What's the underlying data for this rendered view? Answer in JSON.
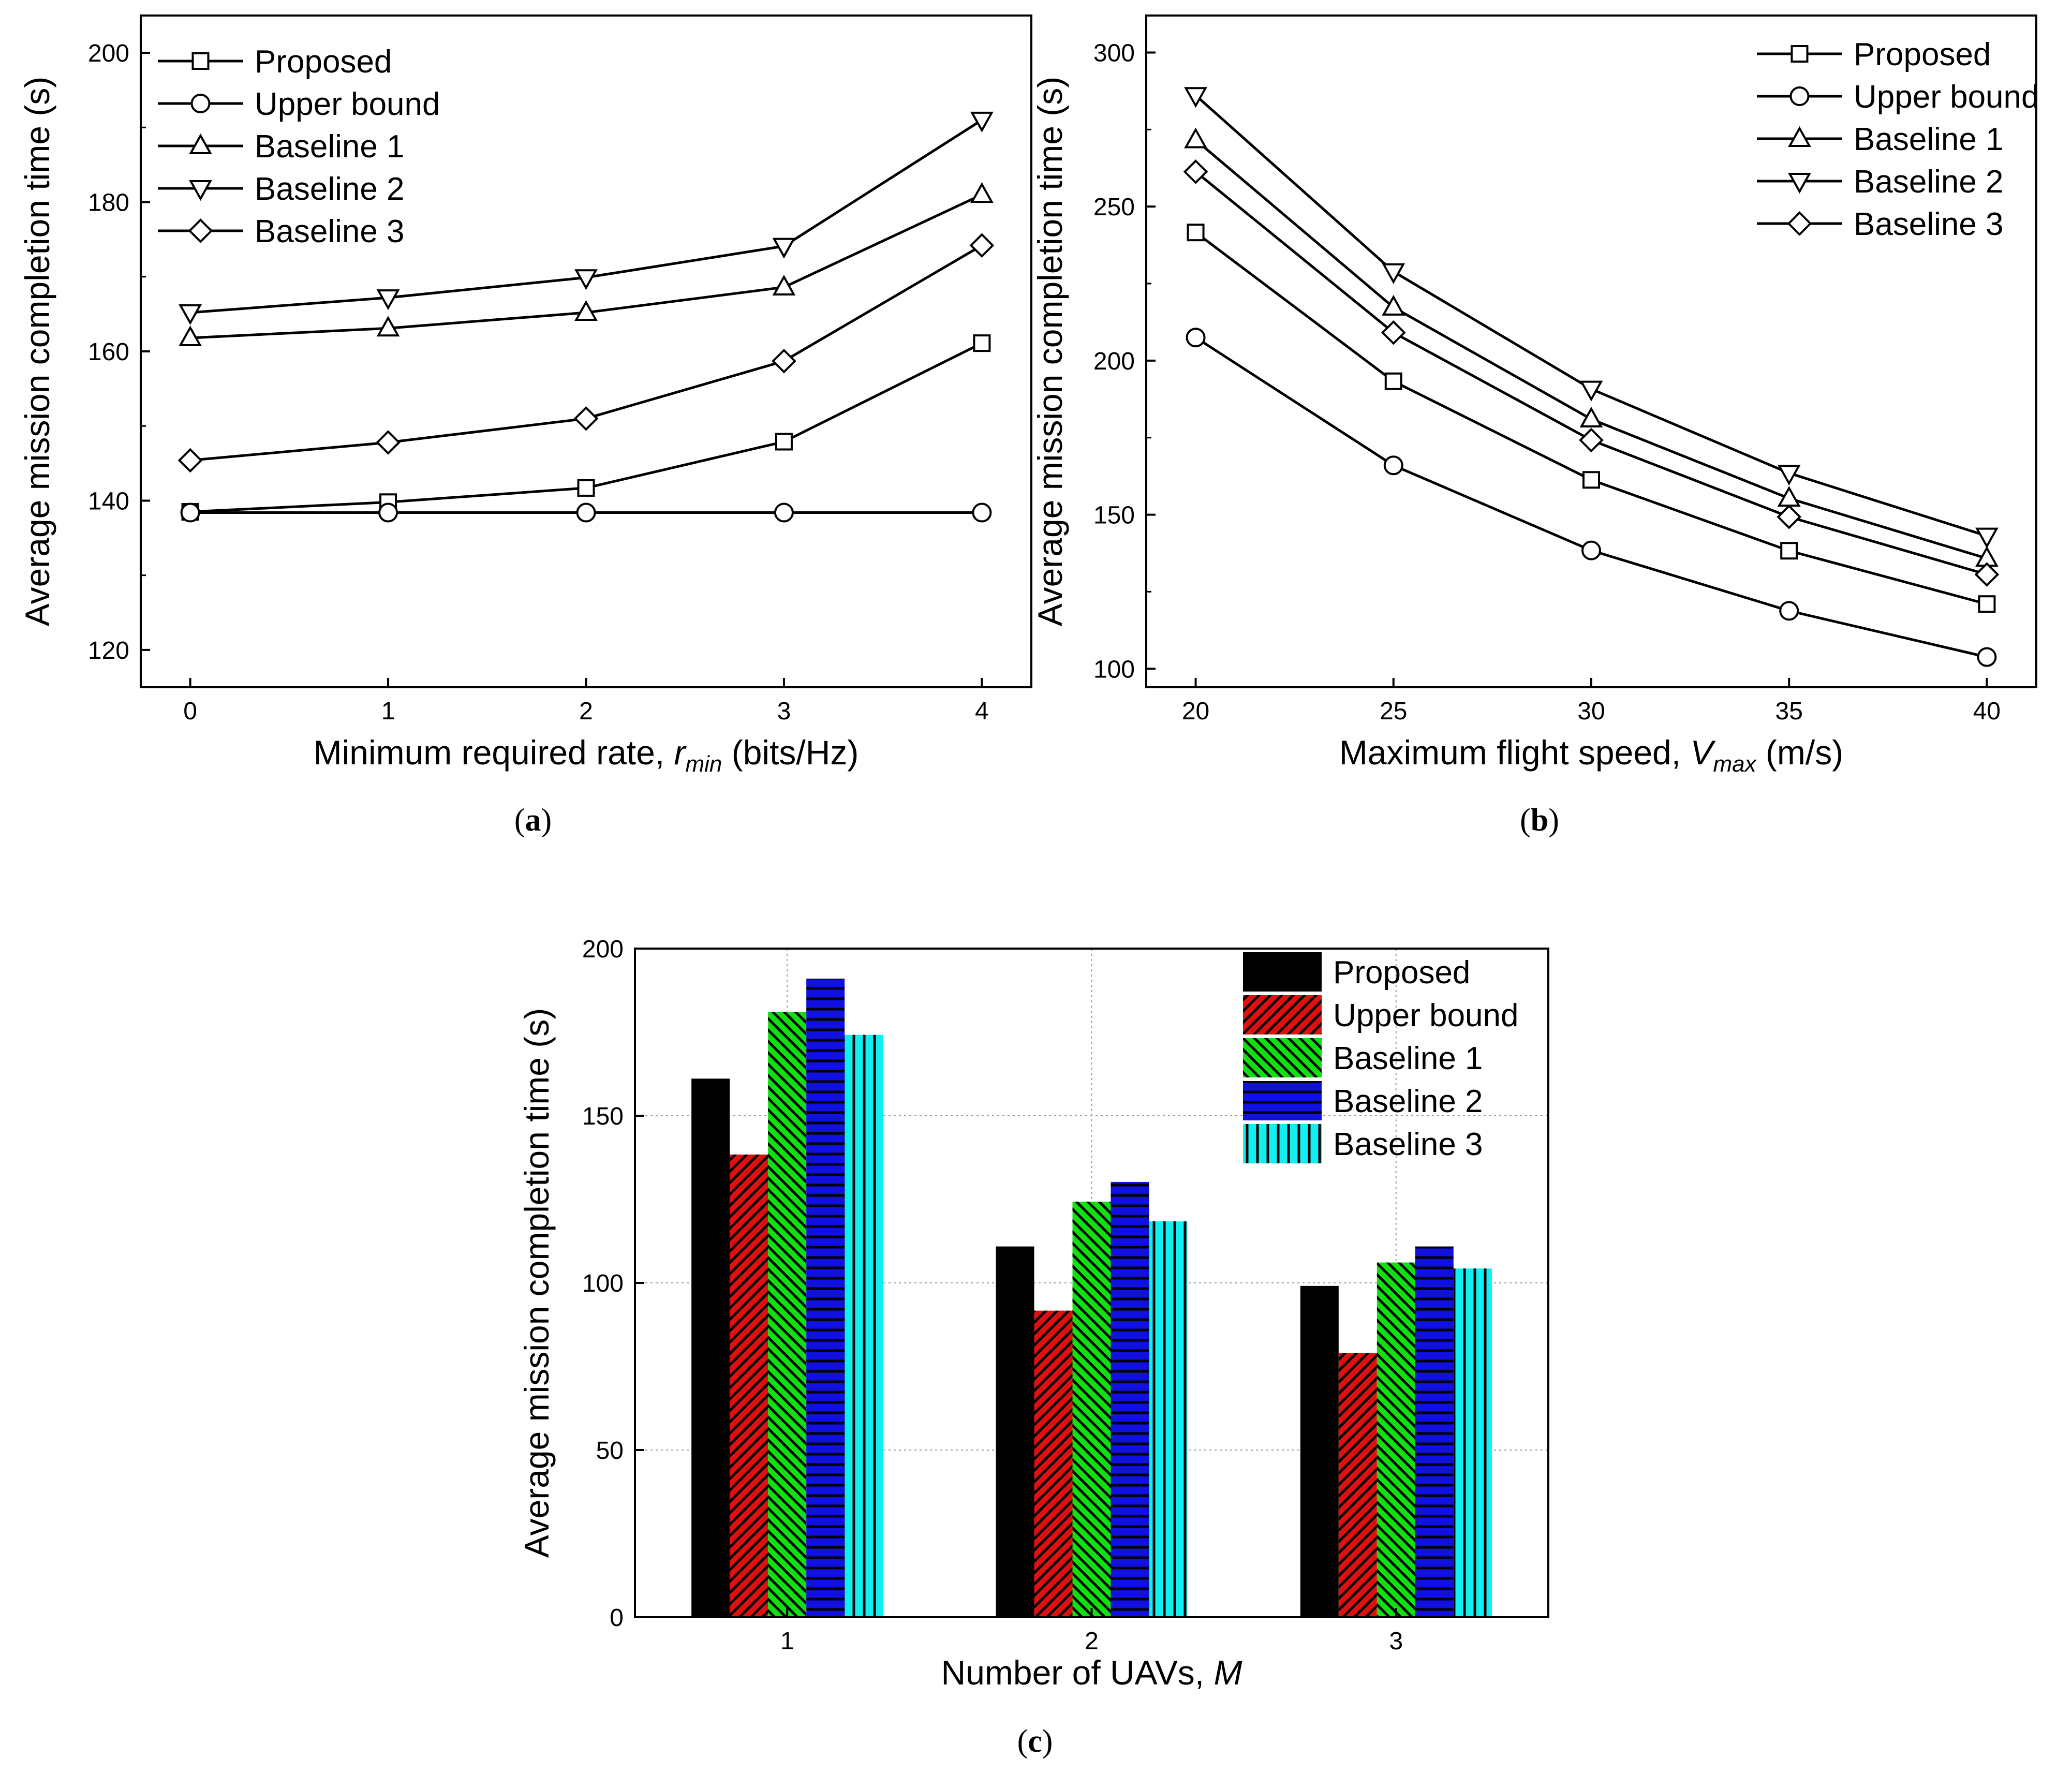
{
  "figure": {
    "panels": [
      {
        "label_open": "(",
        "label_letter": "a",
        "label_close": ")"
      },
      {
        "label_open": "(",
        "label_letter": "b",
        "label_close": ")"
      },
      {
        "label_open": "(",
        "label_letter": "c",
        "label_close": ")"
      }
    ]
  },
  "chart_data": [
    {
      "id": "a",
      "type": "line",
      "ylabel": "Average mission completion time (s)",
      "xlabel_parts": [
        "Minimum required rate, ",
        "r",
        "min",
        " (bits/Hz)"
      ],
      "x": [
        0,
        1,
        2,
        3,
        4
      ],
      "xlim": [
        -0.25,
        4.25
      ],
      "ylim": [
        115,
        205
      ],
      "xticks": [
        0,
        1,
        2,
        3,
        4
      ],
      "yticks": [
        120,
        140,
        160,
        180,
        200
      ],
      "grid": false,
      "legend_position": "top-left",
      "series": [
        {
          "name": "Proposed",
          "marker": "square",
          "values": [
            138.5,
            139.8,
            141.7,
            147.9,
            161.1
          ]
        },
        {
          "name": "Upper bound",
          "marker": "circle",
          "values": [
            138.4,
            138.4,
            138.4,
            138.4,
            138.4
          ]
        },
        {
          "name": "Baseline 1",
          "marker": "triangle-up",
          "values": [
            161.8,
            163.1,
            165.2,
            168.6,
            181.0
          ]
        },
        {
          "name": "Baseline 2",
          "marker": "triangle-down",
          "values": [
            165.2,
            167.2,
            169.9,
            174.1,
            191.0
          ]
        },
        {
          "name": "Baseline 3",
          "marker": "diamond",
          "values": [
            145.4,
            147.8,
            151.0,
            158.7,
            174.2
          ]
        }
      ]
    },
    {
      "id": "b",
      "type": "line",
      "ylabel": "Average mission completion time (s)",
      "xlabel_parts": [
        "Maximum flight speed, ",
        "V",
        "max",
        " (m/s)"
      ],
      "x": [
        20,
        25,
        30,
        35,
        40
      ],
      "xlim": [
        18.75,
        41.25
      ],
      "ylim": [
        94,
        312
      ],
      "xticks": [
        20,
        25,
        30,
        35,
        40
      ],
      "yticks": [
        100,
        150,
        200,
        250,
        300
      ],
      "grid": false,
      "legend_position": "top-right",
      "series": [
        {
          "name": "Proposed",
          "marker": "square",
          "values": [
            241.6,
            193.3,
            161.3,
            138.3,
            121.0
          ]
        },
        {
          "name": "Upper bound",
          "marker": "circle",
          "values": [
            207.5,
            166.0,
            138.4,
            118.8,
            103.8
          ]
        },
        {
          "name": "Baseline 1",
          "marker": "triangle-up",
          "values": [
            271.6,
            217.3,
            181.0,
            155.3,
            135.8
          ]
        },
        {
          "name": "Baseline 2",
          "marker": "triangle-down",
          "values": [
            286.1,
            228.9,
            190.8,
            163.5,
            143.1
          ]
        },
        {
          "name": "Baseline 3",
          "marker": "diamond",
          "values": [
            261.3,
            209.1,
            174.2,
            149.3,
            130.6
          ]
        }
      ]
    },
    {
      "id": "c",
      "type": "bar",
      "ylabel": "Average mission completion time (s)",
      "xlabel_parts": [
        "Number of UAVs, ",
        "M",
        "",
        ""
      ],
      "categories": [
        "1",
        "2",
        "3"
      ],
      "ylim": [
        0,
        200
      ],
      "yticks": [
        0,
        50,
        100,
        150,
        200
      ],
      "grid": true,
      "legend_position": "top-right",
      "series": [
        {
          "name": "Proposed",
          "color": "#000000",
          "pattern": "solid",
          "values": [
            161.1,
            110.9,
            99.1
          ]
        },
        {
          "name": "Upper bound",
          "color": "#e01010",
          "pattern": "diag-right",
          "values": [
            138.4,
            91.7,
            79.0
          ]
        },
        {
          "name": "Baseline 1",
          "color": "#10e010",
          "pattern": "diag-left",
          "values": [
            181.0,
            124.3,
            106.1
          ]
        },
        {
          "name": "Baseline 2",
          "color": "#1010e0",
          "pattern": "horizontal",
          "values": [
            191.0,
            130.2,
            110.9
          ]
        },
        {
          "name": "Baseline 3",
          "color": "#10f0f0",
          "pattern": "vertical",
          "values": [
            174.2,
            118.4,
            104.3
          ]
        }
      ]
    }
  ]
}
